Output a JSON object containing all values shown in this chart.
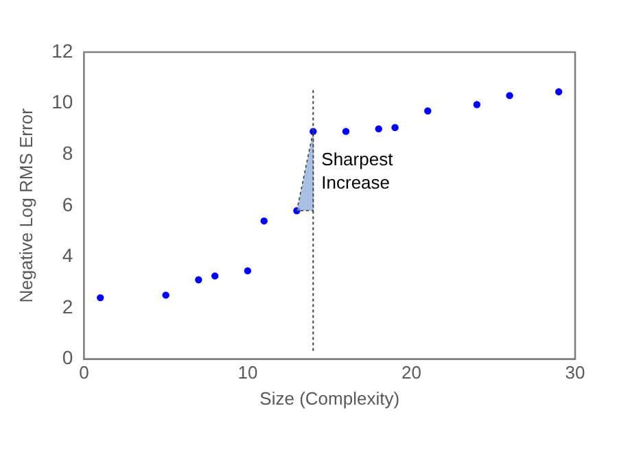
{
  "chart_data": {
    "type": "scatter",
    "xlabel": "Size (Complexity)",
    "ylabel": "Negative Log RMS Error",
    "x": [
      1,
      5,
      7,
      8,
      10,
      11,
      13,
      14,
      16,
      18,
      19,
      21,
      24,
      26,
      29
    ],
    "series": [
      {
        "color": "#0000ff",
        "values": [
          2.4,
          2.5,
          3.1,
          3.25,
          3.45,
          5.4,
          5.8,
          8.9,
          8.9,
          9.0,
          9.05,
          9.7,
          9.95,
          10.3,
          10.45
        ]
      }
    ],
    "xlim": [
      0,
      30
    ],
    "xticks": [
      0,
      10,
      20,
      30
    ],
    "ylim": [
      0,
      12
    ],
    "yticks": [
      0,
      2,
      4,
      6,
      8,
      10,
      12
    ],
    "grid": false,
    "legend": false,
    "marker": "circle",
    "ref_lines": [
      {
        "axis": "x",
        "value": 14,
        "color": "#404040",
        "line_style": "dotted"
      }
    ],
    "annotations": [
      {
        "text": "Sharpest Increase",
        "x": 14,
        "y": 7.3
      }
    ]
  }
}
